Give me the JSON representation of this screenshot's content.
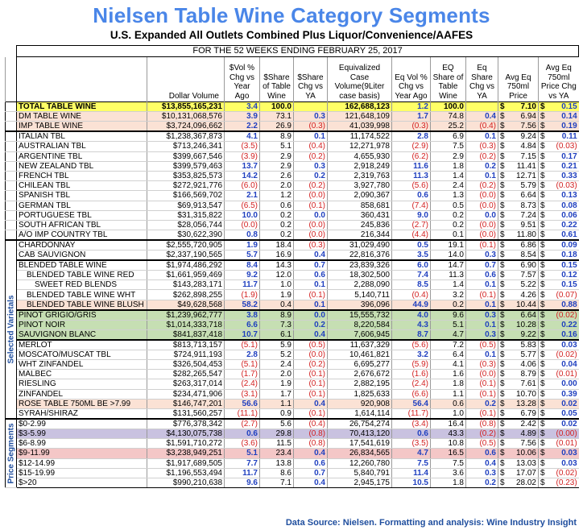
{
  "title": "Nielsen Table Wine Category Segments",
  "subtitle": "U.S. Expanded All Outlets Combined Plus Liquor/Convenience/AAFES",
  "period": "FOR THE 52 WEEKS ENDING FEBRUARY 25, 2017",
  "headers": [
    "Dollar Volume",
    "$Vol % Chg vs Year Ago",
    "$Share of Table Wine",
    "$Share Chg vs YA",
    "Equivalized Case Volume(9Liter case basis)",
    "Eq Vol % Chg vs Year Ago",
    "EQ Share of Table Wine",
    "Eq Share Chg vs YA",
    "Avg Eq 750ml Price",
    "Avg Eq 750ml Price Chg vs YA"
  ],
  "side_labels": {
    "varietals": "Selected Varietals",
    "price": "Price Segments"
  },
  "currency_symbol": "$",
  "source": "Data Source: Nielsen. Formatting and analysis: Wine Industry Insight",
  "colors": {
    "title": "#4a86e8",
    "total": "#ffff66",
    "pink": "#fbe2d5",
    "green": "#c6dfb3",
    "purple": "#c9c2e0",
    "rose": "#f4c7c7",
    "negative": "#d21f1f",
    "positive": "#1f3fbf"
  },
  "rows": [
    {
      "label": "TOTAL TABLE WINE",
      "c": [
        "$13,855,165,231",
        "3.4",
        "100.0",
        "",
        "162,688,123",
        "1.2",
        "100.0",
        "",
        "7.10",
        "0.15"
      ],
      "style": "total"
    },
    {
      "label": "DM TABLE WINE",
      "c": [
        "$10,131,068,576",
        "3.9",
        "73.1",
        "0.3",
        "121,648,109",
        "1.7",
        "74.8",
        "0.4",
        "6.94",
        "0.14"
      ],
      "style": "pink"
    },
    {
      "label": "IMP TABLE WINE",
      "c": [
        "$3,724,096,662",
        "2.2",
        "26.9",
        "(0.3)",
        "41,039,998",
        "(0.3)",
        "25.2",
        "(0.4)",
        "7.56",
        "0.19"
      ],
      "style": "pink"
    },
    {
      "label": "ITALIAN TBL",
      "c": [
        "$1,238,367,873",
        "4.1",
        "8.9",
        "0.1",
        "11,174,522",
        "2.8",
        "6.9",
        "0.1",
        "9.24",
        "0.11"
      ],
      "style": "sep"
    },
    {
      "label": "AUSTRALIAN TBL",
      "c": [
        "$713,246,341",
        "(3.5)",
        "5.1",
        "(0.4)",
        "12,271,978",
        "(2.9)",
        "7.5",
        "(0.3)",
        "4.84",
        "(0.03)"
      ]
    },
    {
      "label": "ARGENTINE TBL",
      "c": [
        "$399,667,546",
        "(3.9)",
        "2.9",
        "(0.2)",
        "4,655,930",
        "(6.2)",
        "2.9",
        "(0.2)",
        "7.15",
        "0.17"
      ]
    },
    {
      "label": "NEW ZEALAND TBL",
      "c": [
        "$399,579,463",
        "13.7",
        "2.9",
        "0.3",
        "2,918,249",
        "11.6",
        "1.8",
        "0.2",
        "11.41",
        "0.21"
      ]
    },
    {
      "label": "FRENCH TBL",
      "c": [
        "$353,825,573",
        "14.2",
        "2.6",
        "0.2",
        "2,319,763",
        "11.3",
        "1.4",
        "0.1",
        "12.71",
        "0.33"
      ]
    },
    {
      "label": "CHILEAN TBL",
      "c": [
        "$272,921,776",
        "(6.0)",
        "2.0",
        "(0.2)",
        "3,927,780",
        "(5.6)",
        "2.4",
        "(0.2)",
        "5.79",
        "(0.03)"
      ]
    },
    {
      "label": "SPANISH TBL",
      "c": [
        "$166,569,702",
        "2.1",
        "1.2",
        "(0.0)",
        "2,090,367",
        "0.6",
        "1.3",
        "(0.0)",
        "6.64",
        "0.13"
      ]
    },
    {
      "label": "GERMAN TBL",
      "c": [
        "$69,913,547",
        "(6.5)",
        "0.6",
        "(0.1)",
        "858,681",
        "(7.4)",
        "0.5",
        "(0.0)",
        "8.73",
        "0.08"
      ]
    },
    {
      "label": "PORTUGUESE TBL",
      "c": [
        "$31,315,822",
        "10.0",
        "0.2",
        "0.0",
        "360,431",
        "9.0",
        "0.2",
        "0.0",
        "7.24",
        "0.06"
      ]
    },
    {
      "label": "SOUTH AFRICAN TBL",
      "c": [
        "$28,056,744",
        "(0.0)",
        "0.2",
        "(0.0)",
        "245,836",
        "(2.7)",
        "0.2",
        "(0.0)",
        "9.51",
        "0.22"
      ]
    },
    {
      "label": "A/O IMP COUNTRY TBL",
      "c": [
        "$30,622,390",
        "0.8",
        "0.2",
        "(0.0)",
        "216,344",
        "(4.4)",
        "0.1",
        "(0.0)",
        "11.80",
        "0.61"
      ]
    },
    {
      "label": "CHARDONNAY",
      "c": [
        "$2,555,720,905",
        "1.9",
        "18.4",
        "(0.3)",
        "31,029,490",
        "0.5",
        "19.1",
        "(0.1)",
        "6.86",
        "0.09"
      ],
      "side": "varietals",
      "style": "sep"
    },
    {
      "label": "CAB SAUVIGNON",
      "c": [
        "$2,337,190,565",
        "5.7",
        "16.9",
        "0.4",
        "22,816,376",
        "3.5",
        "14.0",
        "0.3",
        "8.54",
        "0.18"
      ]
    },
    {
      "label": "BLENDED TABLE WINE",
      "c": [
        "$1,974,486,292",
        "8.4",
        "14.3",
        "0.7",
        "23,839,326",
        "6.0",
        "14.7",
        "0.7",
        "6.90",
        "0.15"
      ],
      "style": "sep"
    },
    {
      "label": "BLENDED TABLE WINE RED",
      "c": [
        "$1,661,959,469",
        "9.2",
        "12.0",
        "0.6",
        "18,302,500",
        "7.4",
        "11.3",
        "0.6",
        "7.57",
        "0.12"
      ],
      "indent": 1
    },
    {
      "label": "SWEET RED BLENDS",
      "c": [
        "$143,283,171",
        "11.7",
        "1.0",
        "0.1",
        "2,288,090",
        "8.5",
        "1.4",
        "0.1",
        "5.22",
        "0.15"
      ],
      "indent": 2
    },
    {
      "label": "BLENDED TABLE WINE WHT",
      "c": [
        "$262,898,255",
        "(1.9)",
        "1.9",
        "(0.1)",
        "5,140,711",
        "(0.4)",
        "3.2",
        "(0.1)",
        "4.26",
        "(0.07)"
      ],
      "indent": 1
    },
    {
      "label": "BLENDED TABLE WINE BLUSH",
      "c": [
        "$49,628,568",
        "58.2",
        "0.4",
        "0.1",
        "396,096",
        "44.9",
        "0.2",
        "0.1",
        "10.44",
        "0.88"
      ],
      "indent": 1,
      "style": "pink"
    },
    {
      "label": "PINOT GRIGIO/GRIS",
      "c": [
        "$1,239,962,777",
        "3.8",
        "8.9",
        "0.0",
        "15,555,732",
        "4.0",
        "9.6",
        "0.3",
        "6.64",
        "(0.02)"
      ],
      "style": "green sep"
    },
    {
      "label": "PINOT NOIR",
      "c": [
        "$1,014,333,718",
        "6.6",
        "7.3",
        "0.2",
        "8,220,584",
        "4.3",
        "5.1",
        "0.1",
        "10.28",
        "0.22"
      ],
      "style": "green"
    },
    {
      "label": "SAUVIGNON BLANC",
      "c": [
        "$841,837,418",
        "10.7",
        "6.1",
        "0.4",
        "7,606,945",
        "8.7",
        "4.7",
        "0.3",
        "9.22",
        "0.16"
      ],
      "style": "green"
    },
    {
      "label": "MERLOT",
      "c": [
        "$813,713,157",
        "(5.1)",
        "5.9",
        "(0.5)",
        "11,637,329",
        "(5.6)",
        "7.2",
        "(0.5)",
        "5.83",
        "0.03"
      ],
      "style": "sep"
    },
    {
      "label": "MOSCATO/MUSCAT TBL",
      "c": [
        "$724,911,193",
        "2.8",
        "5.2",
        "(0.0)",
        "10,461,821",
        "3.2",
        "6.4",
        "0.1",
        "5.77",
        "(0.02)"
      ]
    },
    {
      "label": "WHT ZINFANDEL",
      "c": [
        "$326,504,453",
        "(5.1)",
        "2.4",
        "(0.2)",
        "6,695,277",
        "(5.9)",
        "4.1",
        "(0.3)",
        "4.06",
        "0.04"
      ]
    },
    {
      "label": "MALBEC",
      "c": [
        "$282,265,547",
        "(1.7)",
        "2.0",
        "(0.1)",
        "2,676,672",
        "(1.6)",
        "1.6",
        "(0.0)",
        "8.79",
        "(0.01)"
      ]
    },
    {
      "label": "RIESLING",
      "c": [
        "$263,317,014",
        "(2.4)",
        "1.9",
        "(0.1)",
        "2,882,195",
        "(2.4)",
        "1.8",
        "(0.1)",
        "7.61",
        "0.00"
      ]
    },
    {
      "label": "ZINFANDEL",
      "c": [
        "$234,471,906",
        "(3.1)",
        "1.7",
        "(0.1)",
        "1,825,633",
        "(6.6)",
        "1.1",
        "(0.1)",
        "10.70",
        "0.39"
      ]
    },
    {
      "label": "ROSE TABLE 750ML BE >7.99",
      "c": [
        "$146,747,201",
        "56.6",
        "1.1",
        "0.4",
        "920,908",
        "56.4",
        "0.6",
        "0.2",
        "13.28",
        "0.02"
      ],
      "style": "pink"
    },
    {
      "label": "SYRAH/SHIRAZ",
      "c": [
        "$131,560,257",
        "(11.1)",
        "0.9",
        "(0.1)",
        "1,614,114",
        "(11.7)",
        "1.0",
        "(0.1)",
        "6.79",
        "0.05"
      ],
      "style": "last"
    },
    {
      "label": "$0-2.99",
      "c": [
        "$776,378,342",
        "(2.7)",
        "5.6",
        "(0.4)",
        "26,754,274",
        "(3.4)",
        "16.4",
        "(0.8)",
        "2.42",
        "0.02"
      ],
      "side": "price",
      "style": "sep"
    },
    {
      "label": "$3-5.99",
      "c": [
        "$4,130,075,738",
        "0.6",
        "29.8",
        "(0.8)",
        "70,413,120",
        "0.6",
        "43.3",
        "(0.2)",
        "4.89",
        "(0.00)"
      ],
      "style": "purple"
    },
    {
      "label": "$6-8.99",
      "c": [
        "$1,591,710,272",
        "(3.6)",
        "11.5",
        "(0.8)",
        "17,541,619",
        "(3.5)",
        "10.8",
        "(0.5)",
        "7.56",
        "(0.01)"
      ]
    },
    {
      "label": "$9-11.99",
      "c": [
        "$3,238,949,251",
        "5.1",
        "23.4",
        "0.4",
        "26,834,565",
        "4.7",
        "16.5",
        "0.6",
        "10.06",
        "0.03"
      ],
      "style": "rose"
    },
    {
      "label": "$12-14.99",
      "c": [
        "$1,917,689,505",
        "7.7",
        "13.8",
        "0.6",
        "12,260,780",
        "7.5",
        "7.5",
        "0.4",
        "13.03",
        "0.03"
      ]
    },
    {
      "label": "$15-19.99",
      "c": [
        "$1,196,553,494",
        "11.7",
        "8.6",
        "0.7",
        "5,840,791",
        "11.4",
        "3.6",
        "0.3",
        "17.07",
        "(0.02)"
      ]
    },
    {
      "label": "$>20",
      "c": [
        "$990,210,638",
        "9.6",
        "7.1",
        "0.4",
        "2,945,175",
        "10.5",
        "1.8",
        "0.2",
        "28.02",
        "(0.23)"
      ],
      "style": "last"
    }
  ]
}
